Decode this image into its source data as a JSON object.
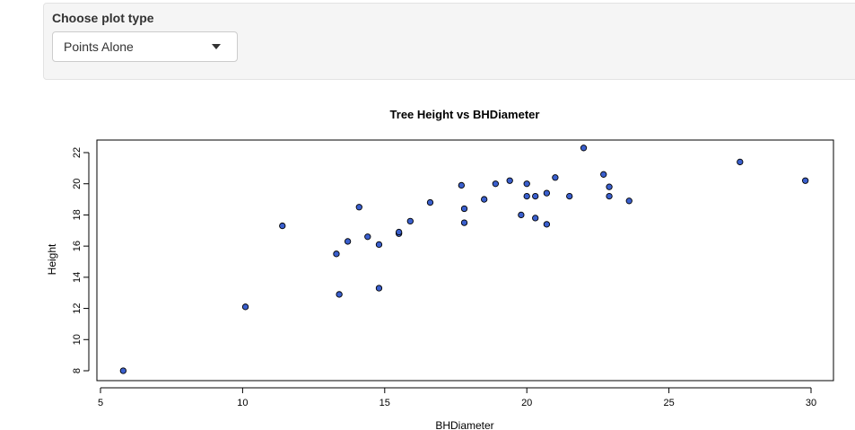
{
  "control": {
    "label": "Choose plot type",
    "selected": "Points Alone"
  },
  "chart_data": {
    "type": "scatter",
    "title": "Tree Height vs BHDiameter",
    "xlabel": "BHDiameter",
    "ylabel": "Height",
    "xlim": [
      5,
      30
    ],
    "ylim": [
      8,
      22
    ],
    "xticks": [
      5,
      10,
      15,
      20,
      25,
      30
    ],
    "yticks": [
      8,
      10,
      12,
      14,
      16,
      18,
      20,
      22
    ],
    "grid": false,
    "point_color": "#3a5fcd",
    "point_edge_color": "#000000",
    "points": [
      {
        "x": 5.8,
        "y": 8.0
      },
      {
        "x": 10.1,
        "y": 12.1
      },
      {
        "x": 11.4,
        "y": 17.3
      },
      {
        "x": 13.3,
        "y": 15.5
      },
      {
        "x": 13.4,
        "y": 12.9
      },
      {
        "x": 13.7,
        "y": 16.3
      },
      {
        "x": 14.1,
        "y": 18.5
      },
      {
        "x": 14.4,
        "y": 16.6
      },
      {
        "x": 14.8,
        "y": 16.1
      },
      {
        "x": 14.8,
        "y": 13.3
      },
      {
        "x": 15.5,
        "y": 16.8
      },
      {
        "x": 15.5,
        "y": 16.9
      },
      {
        "x": 15.9,
        "y": 17.6
      },
      {
        "x": 16.6,
        "y": 18.8
      },
      {
        "x": 17.7,
        "y": 19.9
      },
      {
        "x": 17.8,
        "y": 18.4
      },
      {
        "x": 17.8,
        "y": 17.5
      },
      {
        "x": 18.5,
        "y": 19.0
      },
      {
        "x": 18.9,
        "y": 20.0
      },
      {
        "x": 19.4,
        "y": 20.2
      },
      {
        "x": 19.8,
        "y": 18.0
      },
      {
        "x": 20.0,
        "y": 20.0
      },
      {
        "x": 20.0,
        "y": 19.2
      },
      {
        "x": 20.3,
        "y": 19.2
      },
      {
        "x": 20.3,
        "y": 17.8
      },
      {
        "x": 20.7,
        "y": 19.4
      },
      {
        "x": 20.7,
        "y": 17.4
      },
      {
        "x": 21.0,
        "y": 20.4
      },
      {
        "x": 21.5,
        "y": 19.2
      },
      {
        "x": 22.0,
        "y": 22.3
      },
      {
        "x": 22.7,
        "y": 20.6
      },
      {
        "x": 22.9,
        "y": 19.8
      },
      {
        "x": 22.9,
        "y": 19.2
      },
      {
        "x": 23.6,
        "y": 18.9
      },
      {
        "x": 27.5,
        "y": 21.4
      },
      {
        "x": 29.8,
        "y": 20.2
      }
    ]
  }
}
